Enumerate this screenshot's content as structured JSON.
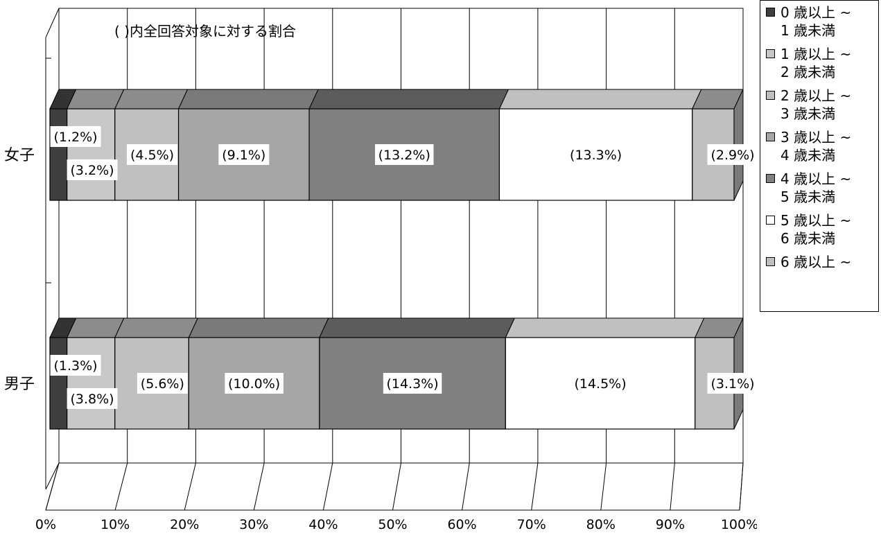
{
  "chart_data": {
    "type": "bar",
    "stacked": true,
    "orientation": "horizontal",
    "subtitle": "( )内全回答対象に対する割合",
    "categories": [
      "女子",
      "男子"
    ],
    "series": [
      {
        "name": "0 歳以上 ~ 1 歳未満",
        "color": "#3f3f3f",
        "values": [
          2.5,
          2.5
        ],
        "labels": [
          "(1.2%)",
          "(1.3%)"
        ]
      },
      {
        "name": "1 歳以上 ~ 2 歳未満",
        "color": "#c8c8c8",
        "values": [
          7.0,
          7.0
        ],
        "labels": [
          "(3.2%)",
          "(3.8%)"
        ]
      },
      {
        "name": "2 歳以上 ~ 3 歳未満",
        "color": "#c0c0c0",
        "values": [
          9.3,
          10.8
        ],
        "labels": [
          "(4.5%)",
          "(5.6%)"
        ]
      },
      {
        "name": "3 歳以上 ~ 4 歳未満",
        "color": "#a6a6a6",
        "values": [
          19.1,
          19.1
        ],
        "labels": [
          "(9.1%)",
          "(10.0%)"
        ]
      },
      {
        "name": "4 歳以上 ~ 5 歳未満",
        "color": "#808080",
        "values": [
          27.8,
          27.2
        ],
        "labels": [
          "(13.2%)",
          "(14.3%)"
        ]
      },
      {
        "name": "5 歳以上 ~ 6 歳未満",
        "color": "#ffffff",
        "values": [
          28.2,
          27.7
        ],
        "labels": [
          "(13.3%)",
          "(14.5%)"
        ]
      },
      {
        "name": "6 歳以上 ~",
        "color": "#c0c0c0",
        "values": [
          6.1,
          5.7
        ],
        "labels": [
          "(2.9%)",
          "(3.1%)"
        ]
      }
    ],
    "xlim": [
      0,
      100
    ],
    "xticks": [
      "0%",
      "10%",
      "20%",
      "30%",
      "40%",
      "50%",
      "60%",
      "70%",
      "80%",
      "90%",
      "100%"
    ],
    "grid": true,
    "legend_position": "right",
    "three_d": true
  },
  "legend": [
    {
      "label": "0 歳以上 ~\n1 歳未満",
      "color": "#3f3f3f"
    },
    {
      "label": "1 歳以上 ~\n2 歳未満",
      "color": "#c8c8c8"
    },
    {
      "label": "2 歳以上 ~\n3 歳未満",
      "color": "#c0c0c0"
    },
    {
      "label": "3 歳以上 ~\n4 歳未満",
      "color": "#a6a6a6"
    },
    {
      "label": "4 歳以上 ~\n5 歳未満",
      "color": "#808080"
    },
    {
      "label": "5 歳以上 ~\n6 歳未満",
      "color": "#ffffff"
    },
    {
      "label": "6 歳以上 ~",
      "color": "#c0c0c0"
    }
  ]
}
